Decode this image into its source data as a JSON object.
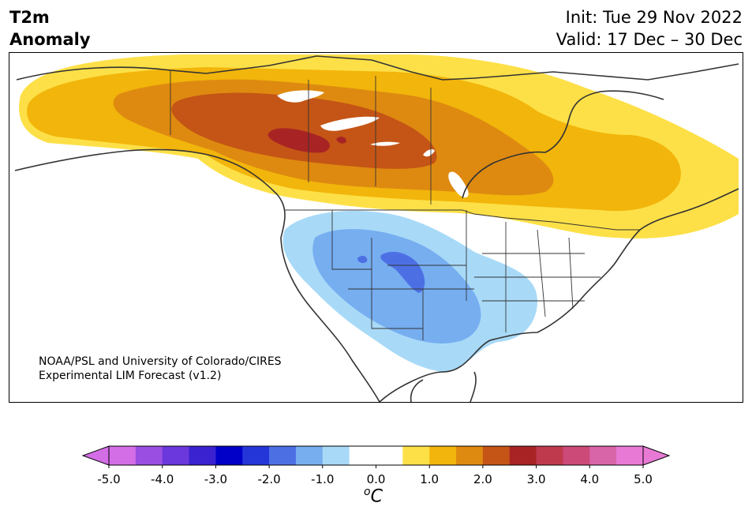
{
  "title": {
    "line1": "T2m",
    "line2": "Anomaly"
  },
  "run": {
    "init": "Init: Tue 29 Nov 2022",
    "valid": "Valid: 17 Dec – 30 Dec"
  },
  "credit": {
    "line1": "NOAA/PSL and University of Colorado/CIRES",
    "line2": "Experimental LIM Forecast (v1.2)"
  },
  "colorbar": {
    "unit_base": "C",
    "unit_sup": "o",
    "ticks": [
      "-5.0",
      "-4.0",
      "-3.0",
      "-2.0",
      "-1.0",
      "0.0",
      "1.0",
      "2.0",
      "3.0",
      "4.0",
      "5.0"
    ],
    "colors": [
      "#d46ee6",
      "#9a4ee2",
      "#6a38dc",
      "#3a22d0",
      "#0000c8",
      "#2536d8",
      "#4c70e4",
      "#76aef0",
      "#a8daf8",
      "#ffffff",
      "#ffffff",
      "#fde047",
      "#f2b50b",
      "#de8a10",
      "#c45516",
      "#a82424",
      "#c03a4e",
      "#cc4a78",
      "#d865a8",
      "#e87ad6"
    ],
    "extend_min_color": "#d46ee6",
    "extend_max_color": "#e87ad6"
  },
  "map_colors": {
    "warm1": "#fde047",
    "warm2": "#f2b50b",
    "warm3": "#de8a10",
    "warm4": "#c45516",
    "warm5": "#a82424",
    "cool1": "#a8daf8",
    "cool2": "#76aef0",
    "cool3": "#4c70e4",
    "coast": "#333333"
  }
}
